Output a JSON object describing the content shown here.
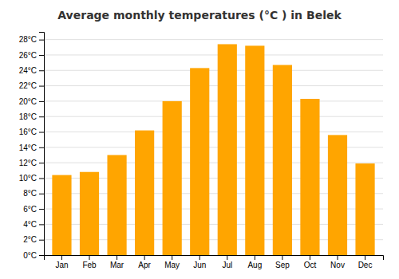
{
  "chart_data": {
    "type": "bar",
    "title": "Average monthly temperatures (°C ) in Belek",
    "categories": [
      "Jan",
      "Feb",
      "Mar",
      "Apr",
      "May",
      "Jun",
      "Jul",
      "Aug",
      "Sep",
      "Oct",
      "Nov",
      "Dec"
    ],
    "values": [
      10.4,
      10.8,
      13.0,
      16.2,
      20.0,
      24.3,
      27.4,
      27.2,
      24.7,
      20.3,
      15.6,
      11.9
    ],
    "color": "#FFA500",
    "ylim": [
      0,
      29
    ],
    "yticks": [
      {
        "value": 0,
        "label": "0°C"
      },
      {
        "value": 2,
        "label": "2°C"
      },
      {
        "value": 4,
        "label": "4°C"
      },
      {
        "value": 6,
        "label": "6°C"
      },
      {
        "value": 8,
        "label": "8°C"
      },
      {
        "value": 10,
        "label": "10°C"
      },
      {
        "value": 12,
        "label": "12°C"
      },
      {
        "value": 14,
        "label": "14°C"
      },
      {
        "value": 16,
        "label": "16°C"
      },
      {
        "value": 18,
        "label": "18°C"
      },
      {
        "value": 20,
        "label": "20°C"
      },
      {
        "value": 22,
        "label": "22°C"
      },
      {
        "value": 24,
        "label": "24°C"
      },
      {
        "value": 26,
        "label": "26°C"
      },
      {
        "value": 28,
        "label": "28°C"
      }
    ],
    "grid": true
  }
}
